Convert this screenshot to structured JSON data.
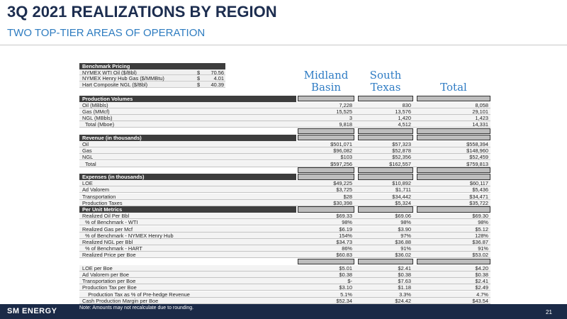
{
  "header": {
    "title": "3Q 2021 REALIZATIONS BY REGION",
    "subtitle": "TWO TOP-TIER AREAS OF OPERATION"
  },
  "columns": [
    "Midland Basin",
    "South Texas",
    "Total"
  ],
  "benchmark": {
    "title": "Benchmark Pricing",
    "rows": [
      [
        "NYMEX WTI Oil ($/Bbl)",
        "$",
        "70.56"
      ],
      [
        "NYMEX Henry Hub Gas ($/MMBtu)",
        "$",
        "4.01"
      ],
      [
        "Hart Composite NGL ($/Bbl)",
        "$",
        "40.39"
      ]
    ]
  },
  "sections": [
    {
      "title": "Production Volumes",
      "rows": [
        [
          "Oil (MBbls)",
          "7,228",
          "830",
          "8,058"
        ],
        [
          "Gas (MMcf)",
          "15,525",
          "13,576",
          "29,101"
        ],
        [
          "NGL (MBbls)",
          "3",
          "1,420",
          "1,423"
        ],
        [
          "  Total (Mboe)",
          "9,818",
          "4,512",
          "14,331"
        ]
      ]
    },
    {
      "title": "Revenue (in thousands)",
      "rows": [
        [
          "Oil",
          "$501,071",
          "$57,323",
          "$558,394"
        ],
        [
          "Gas",
          "$96,082",
          "$52,878",
          "$148,960"
        ],
        [
          "NGL",
          "$103",
          "$52,356",
          "$52,459"
        ],
        [
          "  Total",
          "$597,256",
          "$162,557",
          "$759,813"
        ]
      ]
    },
    {
      "title": "Expenses (in thousands)",
      "rows": [
        [
          "LOE",
          "$49,225",
          "$10,892",
          "$60,117"
        ],
        [
          "Ad Valorem",
          "$3,725",
          "$1,711",
          "$5,436"
        ],
        [
          "Transportation",
          "$28",
          "$34,442",
          "$34,471"
        ],
        [
          "Production Taxes",
          "$30,398",
          "$5,324",
          "$35,722"
        ]
      ]
    },
    {
      "title": "Per Unit Metrics",
      "rows": [
        [
          "Realized Oil Per Bbl",
          "$69.33",
          "$69.06",
          "$69.30"
        ],
        [
          "  % of Benchmark - WTI",
          "98%",
          "98%",
          "98%"
        ],
        [
          "Realized Gas per Mcf",
          "$6.19",
          "$3.90",
          "$5.12"
        ],
        [
          "  % of Benchmark - NYMEX Henry Hub",
          "154%",
          "97%",
          "128%"
        ],
        [
          "Realized NGL per Bbl",
          "$34.73",
          "$36.88",
          "$36.87"
        ],
        [
          "  % of Benchmark - HART",
          "86%",
          "91%",
          "91%"
        ],
        [
          "Realized Price per Boe",
          "$60.83",
          "$36.02",
          "$53.02"
        ]
      ]
    },
    {
      "rows": [
        [
          "LOE per Boe",
          "$5.01",
          "$2.41",
          "$4.20"
        ],
        [
          "Ad Valorem per Boe",
          "$0.38",
          "$0.38",
          "$0.38"
        ],
        [
          "Transportation per Boe",
          "$-",
          "$7.63",
          "$2.41"
        ],
        [
          "Production Tax per Boe",
          "$3.10",
          "$1.18",
          "$2.49"
        ],
        [
          "    Production Tax as % of Pre-hedge Revenue",
          "5.1%",
          "3.3%",
          "4.7%"
        ],
        [
          "Cash Production Margin per Boe",
          "$52.34",
          "$24.42",
          "$43.54"
        ]
      ]
    }
  ],
  "footer": {
    "logo": "SM ENERGY",
    "note": "Note: Amounts may not recalculate due to rounding.",
    "page": "21"
  }
}
